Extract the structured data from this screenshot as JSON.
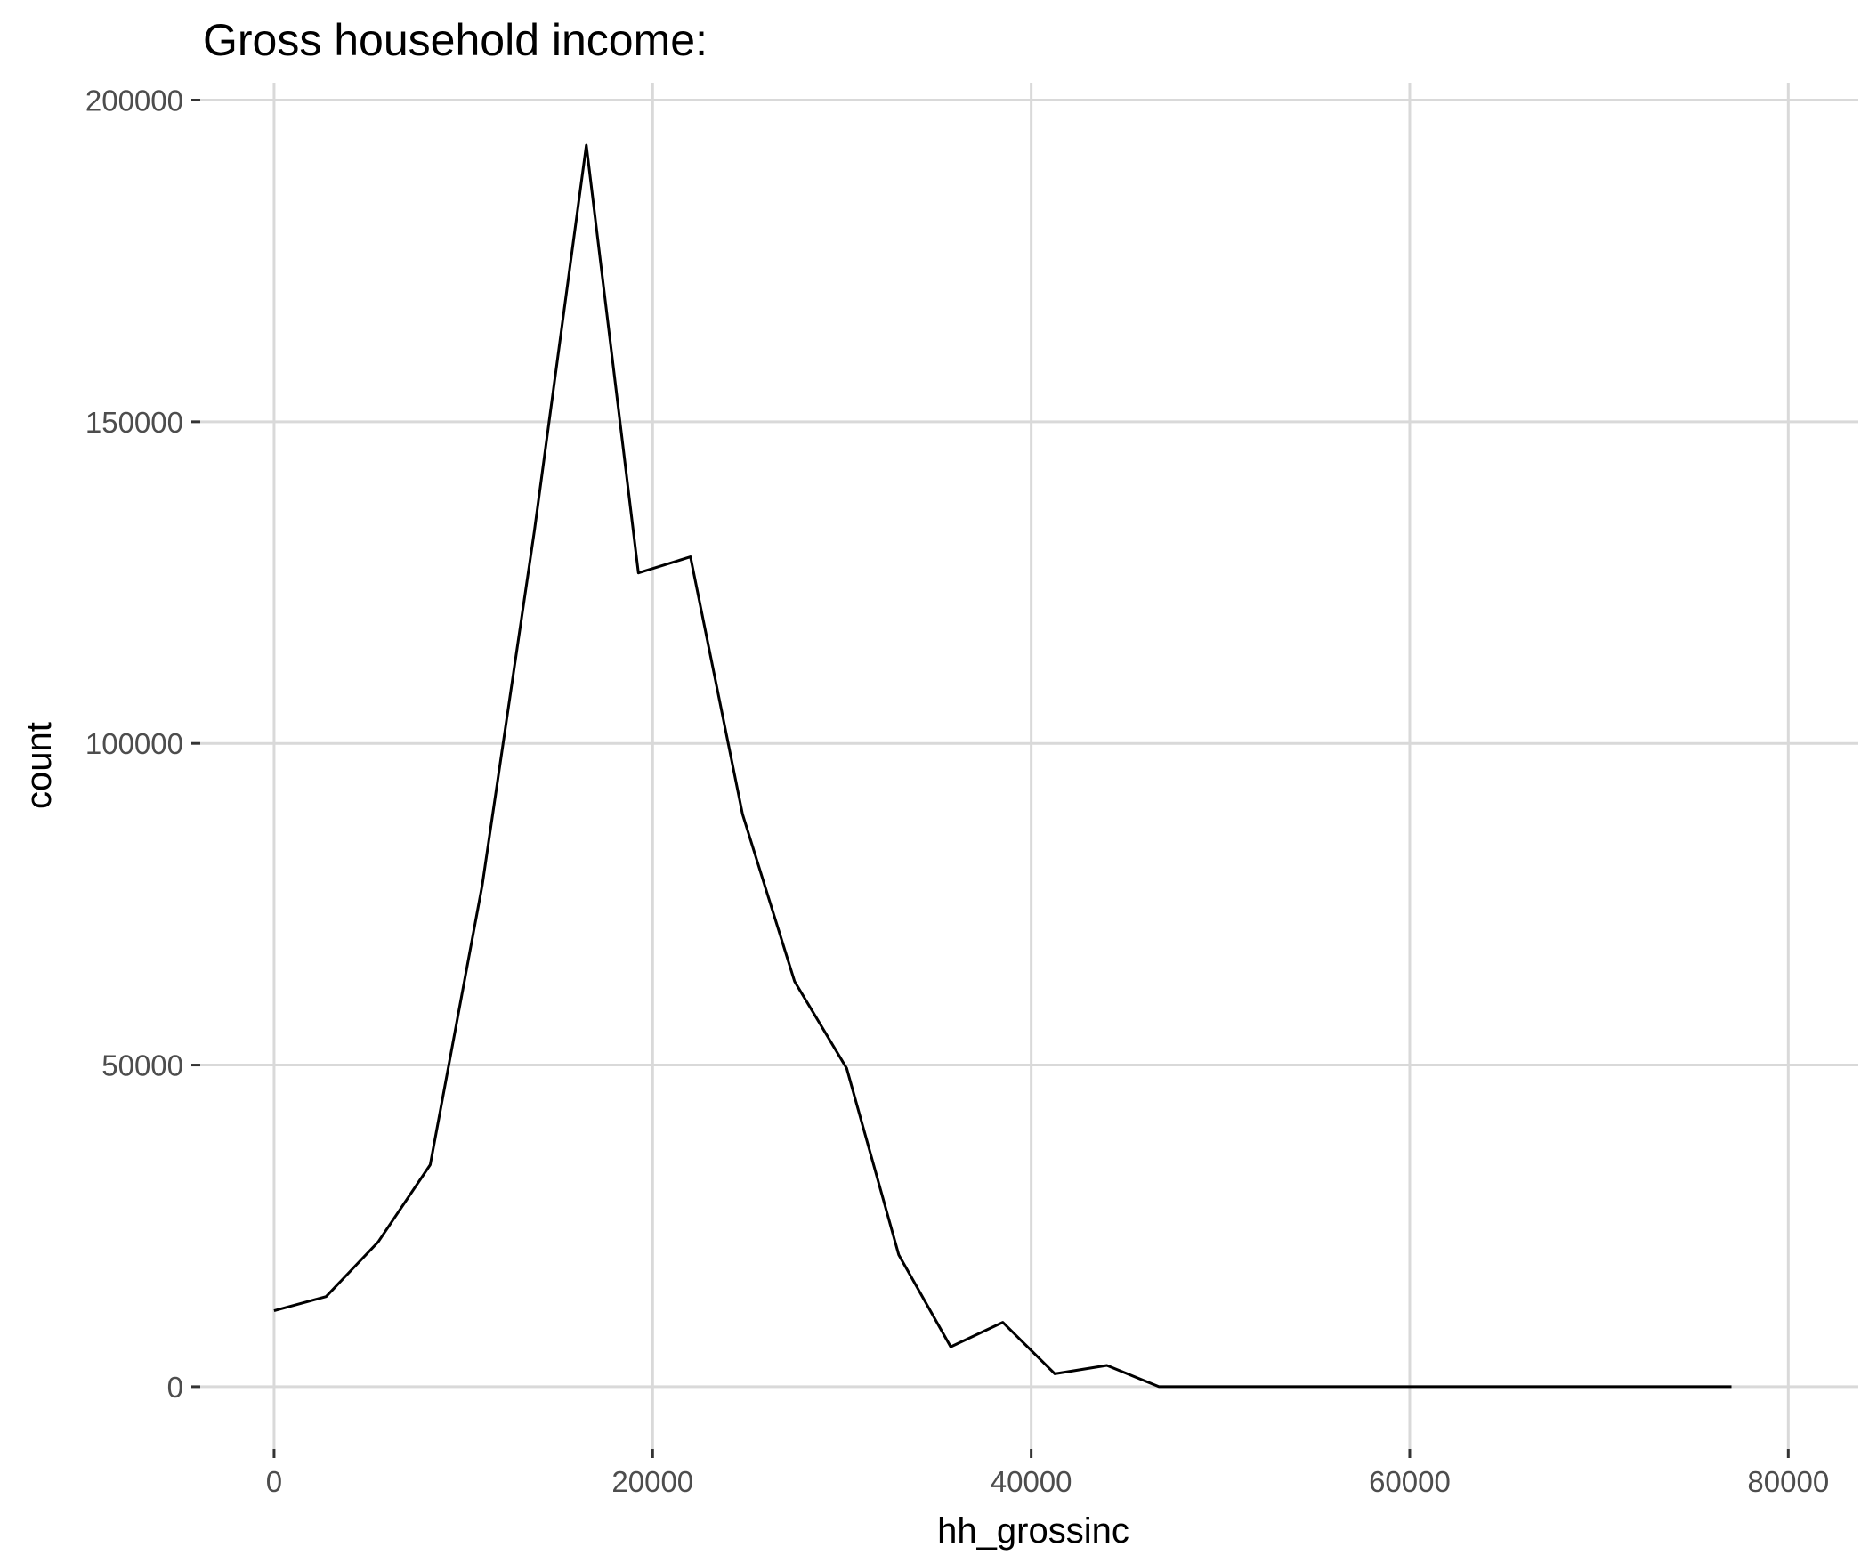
{
  "chart_data": {
    "type": "line",
    "title": "Gross household income:",
    "xlabel": "hh_grossinc",
    "ylabel": "count",
    "xlim": [
      -3900,
      83700
    ],
    "ylim": [
      -9700,
      202700
    ],
    "grid": true,
    "legend": "none",
    "x_ticks": [
      {
        "value": 0,
        "label": "0"
      },
      {
        "value": 20000,
        "label": "20000"
      },
      {
        "value": 40000,
        "label": "40000"
      },
      {
        "value": 60000,
        "label": "60000"
      },
      {
        "value": 80000,
        "label": "80000"
      }
    ],
    "y_ticks": [
      {
        "value": 0,
        "label": "0"
      },
      {
        "value": 50000,
        "label": "50000"
      },
      {
        "value": 100000,
        "label": "100000"
      },
      {
        "value": 150000,
        "label": "150000"
      },
      {
        "value": 200000,
        "label": "200000"
      }
    ],
    "series": [
      {
        "color": "#000000",
        "x": [
          0,
          2750,
          5500,
          8250,
          11000,
          13750,
          16500,
          19250,
          22000,
          24750,
          27500,
          30250,
          33000,
          35750,
          38500,
          41250,
          44000,
          46750,
          49500,
          52250,
          55000,
          57750,
          60500,
          63250,
          66000,
          68750,
          71500,
          74250,
          77000
        ],
        "y": [
          11800,
          14000,
          22500,
          34500,
          78000,
          133000,
          193000,
          126500,
          129000,
          89000,
          63000,
          49500,
          20500,
          6200,
          10000,
          2000,
          3300,
          0,
          0,
          0,
          0,
          0,
          0,
          0,
          0,
          0,
          0,
          0,
          0
        ]
      }
    ]
  }
}
